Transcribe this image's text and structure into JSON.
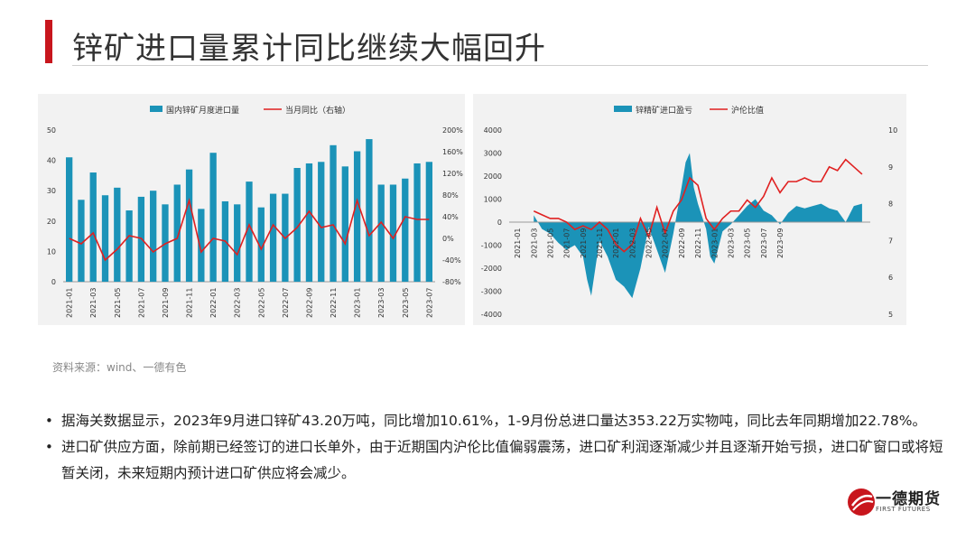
{
  "title": "锌矿进口量累计同比继续大幅回升",
  "source_note": "资料来源：wind、一德有色",
  "bullets": [
    "据海关数据显示，2023年9月进口锌矿43.20万吨，同比增加10.61%，1-9月份总进口量达353.22万实物吨，同比去年同期增加22.78%。",
    "进口矿供应方面，除前期已经签订的进口长单外，由于近期国内沪伦比值偏弱震荡，进口矿利润逐渐减少并且逐渐开始亏损，进口矿窗口或将短暂关闭，未来短期内预计进口矿供应将会减少。"
  ],
  "logo": {
    "name": "一德期货",
    "sub": "FIRST FUTURES"
  },
  "colors": {
    "accent": "#c8161d",
    "bar": "#1b93b8",
    "line": "#e02020"
  },
  "chart_data": [
    {
      "type": "bar",
      "categories": [
        "2021-01",
        "2021-02",
        "2021-03",
        "2021-04",
        "2021-05",
        "2021-06",
        "2021-07",
        "2021-08",
        "2021-09",
        "2021-10",
        "2021-11",
        "2021-12",
        "2022-01",
        "2022-02",
        "2022-03",
        "2022-04",
        "2022-05",
        "2022-06",
        "2022-07",
        "2022-08",
        "2022-09",
        "2022-10",
        "2022-11",
        "2022-12",
        "2023-01",
        "2023-02",
        "2023-03",
        "2023-04",
        "2023-05",
        "2023-06",
        "2023-07"
      ],
      "tick_labels": [
        "2021-01",
        "2021-03",
        "2021-05",
        "2021-07",
        "2021-09",
        "2021-11",
        "2022-01",
        "2022-03",
        "2022-05",
        "2022-07",
        "2022-09",
        "2022-11",
        "2023-01",
        "2023-03",
        "2023-05",
        "2023-07"
      ],
      "series": [
        {
          "name": "国内锌矿月度进口量",
          "axis": "left",
          "values": [
            41,
            27,
            36,
            28.5,
            31,
            23.5,
            28,
            30,
            25.5,
            32,
            37,
            24,
            42.5,
            26.5,
            25.5,
            33,
            24.5,
            29,
            29,
            37.5,
            39,
            39.5,
            45,
            38,
            43,
            47,
            32,
            32,
            34,
            39,
            39.5
          ]
        },
        {
          "name": "当月同比（右轴）",
          "axis": "right",
          "type": "line",
          "values": [
            0,
            -10,
            10,
            -40,
            -20,
            5,
            0,
            -25,
            -10,
            0,
            70,
            -25,
            0,
            -5,
            -30,
            25,
            -20,
            25,
            0,
            20,
            50,
            20,
            25,
            -10,
            70,
            5,
            30,
            0,
            40,
            35,
            35
          ]
        }
      ],
      "left_axis": {
        "ylim": [
          0,
          50
        ],
        "ticks": [
          "0",
          "10",
          "20",
          "30",
          "40",
          "50"
        ]
      },
      "right_axis": {
        "ylim": [
          -80,
          200
        ],
        "ticks": [
          "-80%",
          "-40%",
          "0%",
          "40%",
          "80%",
          "120%",
          "160%",
          "200%"
        ]
      }
    },
    {
      "type": "area",
      "tick_labels": [
        "2021-01",
        "2021-03",
        "2021-05",
        "2021-07",
        "2021-09",
        "2021-11",
        "2022-01",
        "2022-03",
        "2022-05",
        "2022-07",
        "2022-09",
        "2022-11",
        "2023-01",
        "2023-03",
        "2023-05",
        "2023-07",
        "2023-09"
      ],
      "series": [
        {
          "name": "锌精矿进口盈亏",
          "axis": "left",
          "type": "area",
          "points": [
            [
              3,
              300
            ],
            [
              4,
              -300
            ],
            [
              5,
              -500
            ],
            [
              6,
              -900
            ],
            [
              7,
              -1200
            ],
            [
              8,
              -1000
            ],
            [
              9,
              -1500
            ],
            [
              9.5,
              -2500
            ],
            [
              10,
              -3200
            ],
            [
              10.5,
              -2000
            ],
            [
              11,
              -800
            ],
            [
              12,
              -1500
            ],
            [
              13,
              -2500
            ],
            [
              14,
              -2800
            ],
            [
              15,
              -3300
            ],
            [
              16,
              -2000
            ],
            [
              17,
              -200
            ],
            [
              18,
              -1200
            ],
            [
              19,
              -2200
            ],
            [
              20,
              -500
            ],
            [
              20.5,
              500
            ],
            [
              21,
              1500
            ],
            [
              21.5,
              2600
            ],
            [
              22,
              3000
            ],
            [
              22.5,
              1500
            ],
            [
              23,
              800
            ],
            [
              24,
              -300
            ],
            [
              24.5,
              -1500
            ],
            [
              25,
              -1800
            ],
            [
              26,
              -400
            ],
            [
              27,
              -100
            ],
            [
              28,
              300
            ],
            [
              29,
              700
            ],
            [
              30,
              1000
            ],
            [
              31,
              500
            ],
            [
              32,
              300
            ],
            [
              33,
              -100
            ],
            [
              34,
              400
            ],
            [
              35,
              700
            ],
            [
              36,
              600
            ],
            [
              37,
              700
            ],
            [
              38,
              800
            ],
            [
              39,
              600
            ],
            [
              40,
              500
            ],
            [
              41,
              0
            ],
            [
              42,
              700
            ],
            [
              43,
              800
            ]
          ]
        },
        {
          "name": "沪伦比值",
          "axis": "right",
          "type": "line",
          "points": [
            [
              3,
              7.8
            ],
            [
              4,
              7.7
            ],
            [
              5,
              7.6
            ],
            [
              6,
              7.6
            ],
            [
              7,
              7.5
            ],
            [
              8,
              7.3
            ],
            [
              9,
              7.4
            ],
            [
              10,
              7.3
            ],
            [
              11,
              7.5
            ],
            [
              12,
              7.3
            ],
            [
              13,
              6.9
            ],
            [
              14,
              6.7
            ],
            [
              15,
              6.9
            ],
            [
              16,
              7.6
            ],
            [
              17,
              7.1
            ],
            [
              18,
              7.9
            ],
            [
              19,
              7.2
            ],
            [
              20,
              7.8
            ],
            [
              21,
              8.1
            ],
            [
              22,
              8.7
            ],
            [
              23,
              8.5
            ],
            [
              24,
              7.6
            ],
            [
              25,
              7.3
            ],
            [
              26,
              7.6
            ],
            [
              27,
              7.8
            ],
            [
              28,
              7.8
            ],
            [
              29,
              8.1
            ],
            [
              30,
              7.9
            ],
            [
              31,
              8.2
            ],
            [
              32,
              8.7
            ],
            [
              33,
              8.3
            ],
            [
              34,
              8.6
            ],
            [
              35,
              8.6
            ],
            [
              36,
              8.7
            ],
            [
              37,
              8.6
            ],
            [
              38,
              8.6
            ],
            [
              39,
              9.0
            ],
            [
              40,
              8.9
            ],
            [
              41,
              9.2
            ],
            [
              42,
              9.0
            ],
            [
              43,
              8.8
            ]
          ]
        }
      ],
      "left_axis": {
        "ylim": [
          -4000,
          4000
        ],
        "ticks": [
          "-4000",
          "-3000",
          "-2000",
          "-1000",
          "0",
          "1000",
          "2000",
          "3000",
          "4000"
        ]
      },
      "right_axis": {
        "ylim": [
          5,
          10
        ],
        "ticks": [
          "5",
          "6",
          "7",
          "8",
          "9",
          "10"
        ]
      }
    }
  ]
}
